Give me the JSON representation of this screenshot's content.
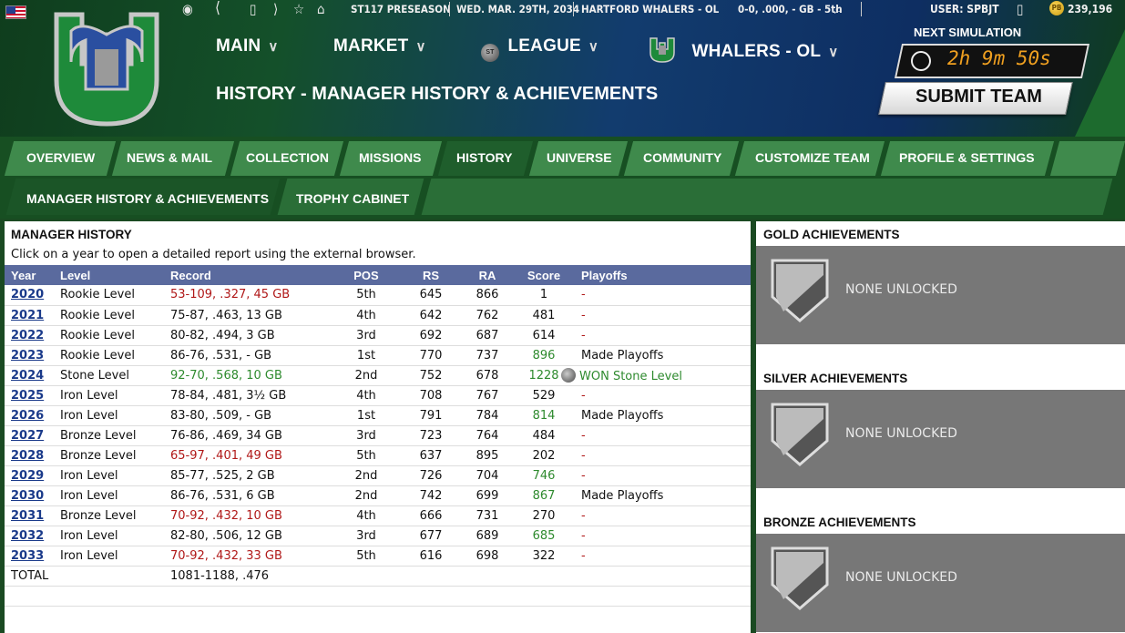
{
  "topbar": {
    "league_text": "ST117 PRESEASON",
    "date_text": "WED. MAR. 29TH, 2034",
    "team_text": "HARTFORD WHALERS - OL",
    "record_text": "0-0, .000, - GB - 5th",
    "user_text": "USER: SPBJT",
    "coins_text": "239,196"
  },
  "nav": {
    "main": "MAIN",
    "market": "MARKET",
    "league": "LEAGUE",
    "team": "WHALERS - OL"
  },
  "page_title": "HISTORY - MANAGER HISTORY & ACHIEVEMENTS",
  "simulation": {
    "label": "NEXT SIMULATION",
    "timer": "2h 9m 50s",
    "submit_label": "SUBMIT TEAM"
  },
  "tabs": [
    "OVERVIEW",
    "NEWS & MAIL",
    "COLLECTION",
    "MISSIONS",
    "HISTORY",
    "UNIVERSE",
    "COMMUNITY",
    "CUSTOMIZE TEAM",
    "PROFILE & SETTINGS"
  ],
  "subtabs": [
    "MANAGER HISTORY & ACHIEVEMENTS",
    "TROPHY CABINET"
  ],
  "manager_history": {
    "title": "MANAGER HISTORY",
    "description": "Click on a year to open a detailed report using the external browser.",
    "columns": [
      "Year",
      "Level",
      "Record",
      "POS",
      "RS",
      "RA",
      "Score",
      "Playoffs"
    ],
    "rows": [
      {
        "year": "2020",
        "level": "Rookie Level",
        "record": "53-109, .327, 45 GB",
        "pos": "5th",
        "rs": "645",
        "ra": "866",
        "score": "1",
        "playoffs": "-"
      },
      {
        "year": "2021",
        "level": "Rookie Level",
        "record": "75-87, .463, 13 GB",
        "pos": "4th",
        "rs": "642",
        "ra": "762",
        "score": "481",
        "playoffs": "-"
      },
      {
        "year": "2022",
        "level": "Rookie Level",
        "record": "80-82, .494, 3 GB",
        "pos": "3rd",
        "rs": "692",
        "ra": "687",
        "score": "614",
        "playoffs": "-"
      },
      {
        "year": "2023",
        "level": "Rookie Level",
        "record": "86-76, .531, - GB",
        "pos": "1st",
        "rs": "770",
        "ra": "737",
        "score": "896",
        "playoffs": "Made Playoffs"
      },
      {
        "year": "2024",
        "level": "Stone Level",
        "record": "92-70, .568, 10 GB",
        "pos": "2nd",
        "rs": "752",
        "ra": "678",
        "score": "1228",
        "playoffs": "WON Stone Level"
      },
      {
        "year": "2025",
        "level": "Iron Level",
        "record": "78-84, .481, 3½ GB",
        "pos": "4th",
        "rs": "708",
        "ra": "767",
        "score": "529",
        "playoffs": "-"
      },
      {
        "year": "2026",
        "level": "Iron Level",
        "record": "83-80, .509, - GB",
        "pos": "1st",
        "rs": "791",
        "ra": "784",
        "score": "814",
        "playoffs": "Made Playoffs"
      },
      {
        "year": "2027",
        "level": "Bronze Level",
        "record": "76-86, .469, 34 GB",
        "pos": "3rd",
        "rs": "723",
        "ra": "764",
        "score": "484",
        "playoffs": "-"
      },
      {
        "year": "2028",
        "level": "Bronze Level",
        "record": "65-97, .401, 49 GB",
        "pos": "5th",
        "rs": "637",
        "ra": "895",
        "score": "202",
        "playoffs": "-"
      },
      {
        "year": "2029",
        "level": "Iron Level",
        "record": "85-77, .525, 2 GB",
        "pos": "2nd",
        "rs": "726",
        "ra": "704",
        "score": "746",
        "playoffs": "-"
      },
      {
        "year": "2030",
        "level": "Iron Level",
        "record": "86-76, .531, 6 GB",
        "pos": "2nd",
        "rs": "742",
        "ra": "699",
        "score": "867",
        "playoffs": "Made Playoffs"
      },
      {
        "year": "2031",
        "level": "Bronze Level",
        "record": "70-92, .432, 10 GB",
        "pos": "4th",
        "rs": "666",
        "ra": "731",
        "score": "270",
        "playoffs": "-"
      },
      {
        "year": "2032",
        "level": "Iron Level",
        "record": "82-80, .506, 12 GB",
        "pos": "3rd",
        "rs": "677",
        "ra": "689",
        "score": "685",
        "playoffs": "-"
      },
      {
        "year": "2033",
        "level": "Iron Level",
        "record": "70-92, .432, 33 GB",
        "pos": "5th",
        "rs": "616",
        "ra": "698",
        "score": "322",
        "playoffs": "-"
      }
    ],
    "total_label": "TOTAL",
    "total_record": "1081-1188, .476"
  },
  "achievements": {
    "gold_title": "GOLD ACHIEVEMENTS",
    "silver_title": "SILVER ACHIEVEMENTS",
    "bronze_title": "BRONZE ACHIEVEMENTS",
    "none_text": "NONE UNLOCKED"
  },
  "colors": {
    "red_record": "#b01818",
    "green_score": "#2e8a2e",
    "table_header": "#5a6a9e",
    "tab_green": "#3f8a4c"
  }
}
